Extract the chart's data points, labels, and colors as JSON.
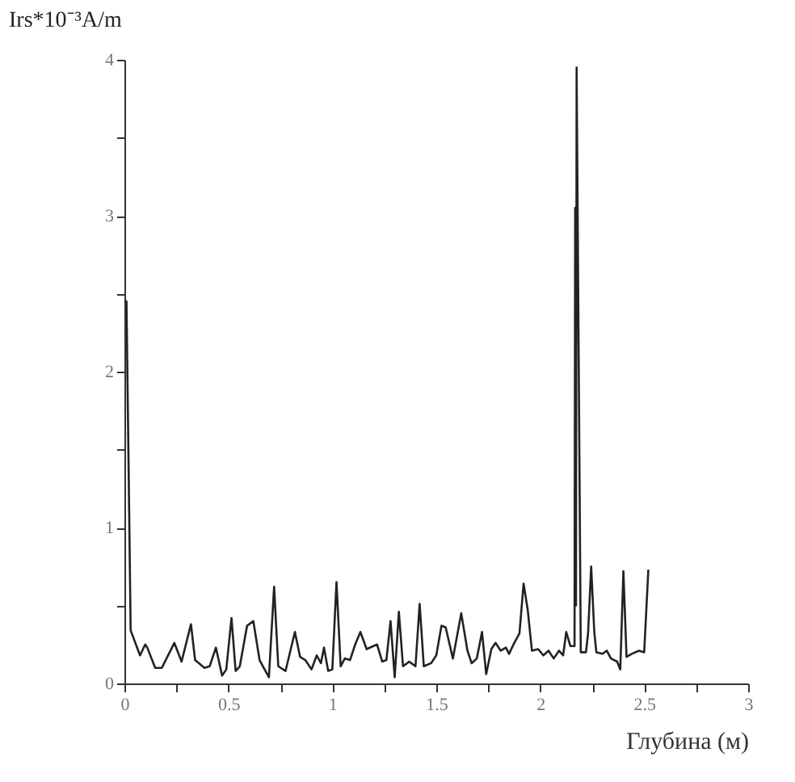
{
  "chart_data": {
    "type": "line",
    "xlabel": "Глубина (м)",
    "ylabel": "Irs*10⁻³A/m",
    "xlim": [
      0,
      3
    ],
    "ylim": [
      0,
      4
    ],
    "xticks": [
      0,
      {
        "value": 0.25,
        "label": null
      },
      0.5,
      {
        "value": 0.75,
        "label": null
      },
      1,
      {
        "value": 1.25,
        "label": null
      },
      1.5,
      {
        "value": 1.75,
        "label": null
      },
      2,
      {
        "value": 2.25,
        "label": null
      },
      2.5,
      {
        "value": 2.75,
        "label": null
      },
      3
    ],
    "yticks": [
      0,
      {
        "value": 0.5,
        "label": null
      },
      1,
      {
        "value": 1.5,
        "label": null
      },
      2,
      {
        "value": 2.5,
        "label": null
      },
      3,
      {
        "value": 3.5,
        "label": null
      },
      4
    ],
    "grid": false,
    "marker": "none",
    "line_style": "solid",
    "series": [
      {
        "color": "#222222",
        "x": [
          0.0,
          0.01,
          0.03,
          0.075,
          0.1,
          0.11,
          0.148,
          0.18,
          0.24,
          0.275,
          0.32,
          0.34,
          0.385,
          0.41,
          0.44,
          0.47,
          0.49,
          0.515,
          0.535,
          0.555,
          0.59,
          0.62,
          0.65,
          0.695,
          0.72,
          0.74,
          0.775,
          0.82,
          0.845,
          0.87,
          0.9,
          0.925,
          0.945,
          0.96,
          0.98,
          1.0,
          1.02,
          1.04,
          1.06,
          1.085,
          1.11,
          1.135,
          1.165,
          1.215,
          1.24,
          1.26,
          1.28,
          1.3,
          1.32,
          1.34,
          1.37,
          1.4,
          1.42,
          1.44,
          1.475,
          1.5,
          1.525,
          1.545,
          1.58,
          1.62,
          1.65,
          1.67,
          1.695,
          1.72,
          1.74,
          1.765,
          1.785,
          1.81,
          1.835,
          1.85,
          1.875,
          1.9,
          1.92,
          1.94,
          1.96,
          1.99,
          2.015,
          2.04,
          2.065,
          2.09,
          2.11,
          2.125,
          2.145,
          2.165,
          2.168,
          2.172,
          2.175,
          2.195,
          2.22,
          2.23,
          2.245,
          2.26,
          2.27,
          2.3,
          2.32,
          2.34,
          2.37,
          2.385,
          2.4,
          2.415,
          2.44,
          2.475,
          2.5,
          2.52
        ],
        "values": [
          2.45,
          2.45,
          0.34,
          0.18,
          0.25,
          0.23,
          0.1,
          0.1,
          0.26,
          0.14,
          0.38,
          0.15,
          0.1,
          0.11,
          0.23,
          0.05,
          0.09,
          0.42,
          0.08,
          0.11,
          0.37,
          0.4,
          0.15,
          0.04,
          0.62,
          0.11,
          0.08,
          0.33,
          0.17,
          0.15,
          0.09,
          0.18,
          0.13,
          0.23,
          0.08,
          0.09,
          0.65,
          0.11,
          0.16,
          0.15,
          0.25,
          0.33,
          0.22,
          0.25,
          0.14,
          0.15,
          0.4,
          0.04,
          0.46,
          0.11,
          0.14,
          0.11,
          0.51,
          0.11,
          0.13,
          0.18,
          0.37,
          0.36,
          0.16,
          0.45,
          0.21,
          0.13,
          0.16,
          0.33,
          0.06,
          0.22,
          0.26,
          0.21,
          0.23,
          0.19,
          0.26,
          0.32,
          0.64,
          0.47,
          0.21,
          0.22,
          0.18,
          0.21,
          0.16,
          0.21,
          0.18,
          0.33,
          0.24,
          0.24,
          3.05,
          0.5,
          3.95,
          0.2,
          0.2,
          0.32,
          0.75,
          0.33,
          0.2,
          0.19,
          0.21,
          0.16,
          0.14,
          0.09,
          0.72,
          0.17,
          0.19,
          0.21,
          0.2,
          0.73
        ]
      }
    ]
  }
}
